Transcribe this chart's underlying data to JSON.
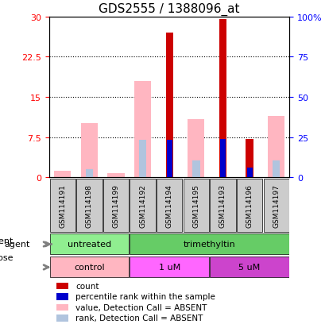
{
  "title": "GDS2555 / 1388096_at",
  "samples": [
    "GSM114191",
    "GSM114198",
    "GSM114199",
    "GSM114192",
    "GSM114194",
    "GSM114195",
    "GSM114193",
    "GSM114196",
    "GSM114197"
  ],
  "count_values": [
    0,
    0,
    0,
    0,
    27.0,
    0,
    29.5,
    7.2,
    0
  ],
  "rank_values": [
    0,
    0,
    0,
    0,
    7.0,
    0,
    7.2,
    1.8,
    0
  ],
  "absent_value_values": [
    1.2,
    10.2,
    0.8,
    18.0,
    0,
    10.8,
    0,
    0,
    11.5
  ],
  "absent_rank_values": [
    0,
    1.5,
    0,
    7.0,
    0,
    3.2,
    0,
    0,
    3.2
  ],
  "left_yticks": [
    0,
    7.5,
    15,
    22.5,
    30
  ],
  "right_yticks": [
    0,
    25,
    50,
    75,
    100
  ],
  "right_yticklabels": [
    "0",
    "25",
    "50",
    "75",
    "100%"
  ],
  "ylim": [
    0,
    30
  ],
  "agent_labels": [
    {
      "label": "untreated",
      "start": 0,
      "end": 3,
      "color": "#90EE90"
    },
    {
      "label": "trimethyltin",
      "start": 3,
      "end": 9,
      "color": "#66CC66"
    }
  ],
  "dose_labels": [
    {
      "label": "control",
      "start": 0,
      "end": 3,
      "color": "#FFB6C1"
    },
    {
      "label": "1 uM",
      "start": 3,
      "end": 6,
      "color": "#FF66FF"
    },
    {
      "label": "5 uM",
      "start": 6,
      "end": 9,
      "color": "#CC44CC"
    }
  ],
  "bar_width": 0.35,
  "color_count": "#CC0000",
  "color_rank": "#0000CC",
  "color_absent_value": "#FFB6C1",
  "color_absent_rank": "#B0C4DE",
  "legend_items": [
    {
      "color": "#CC0000",
      "label": "count"
    },
    {
      "color": "#0000CC",
      "label": "percentile rank within the sample"
    },
    {
      "color": "#FFB6C1",
      "label": "value, Detection Call = ABSENT"
    },
    {
      "color": "#B0C4DE",
      "label": "rank, Detection Call = ABSENT"
    }
  ]
}
